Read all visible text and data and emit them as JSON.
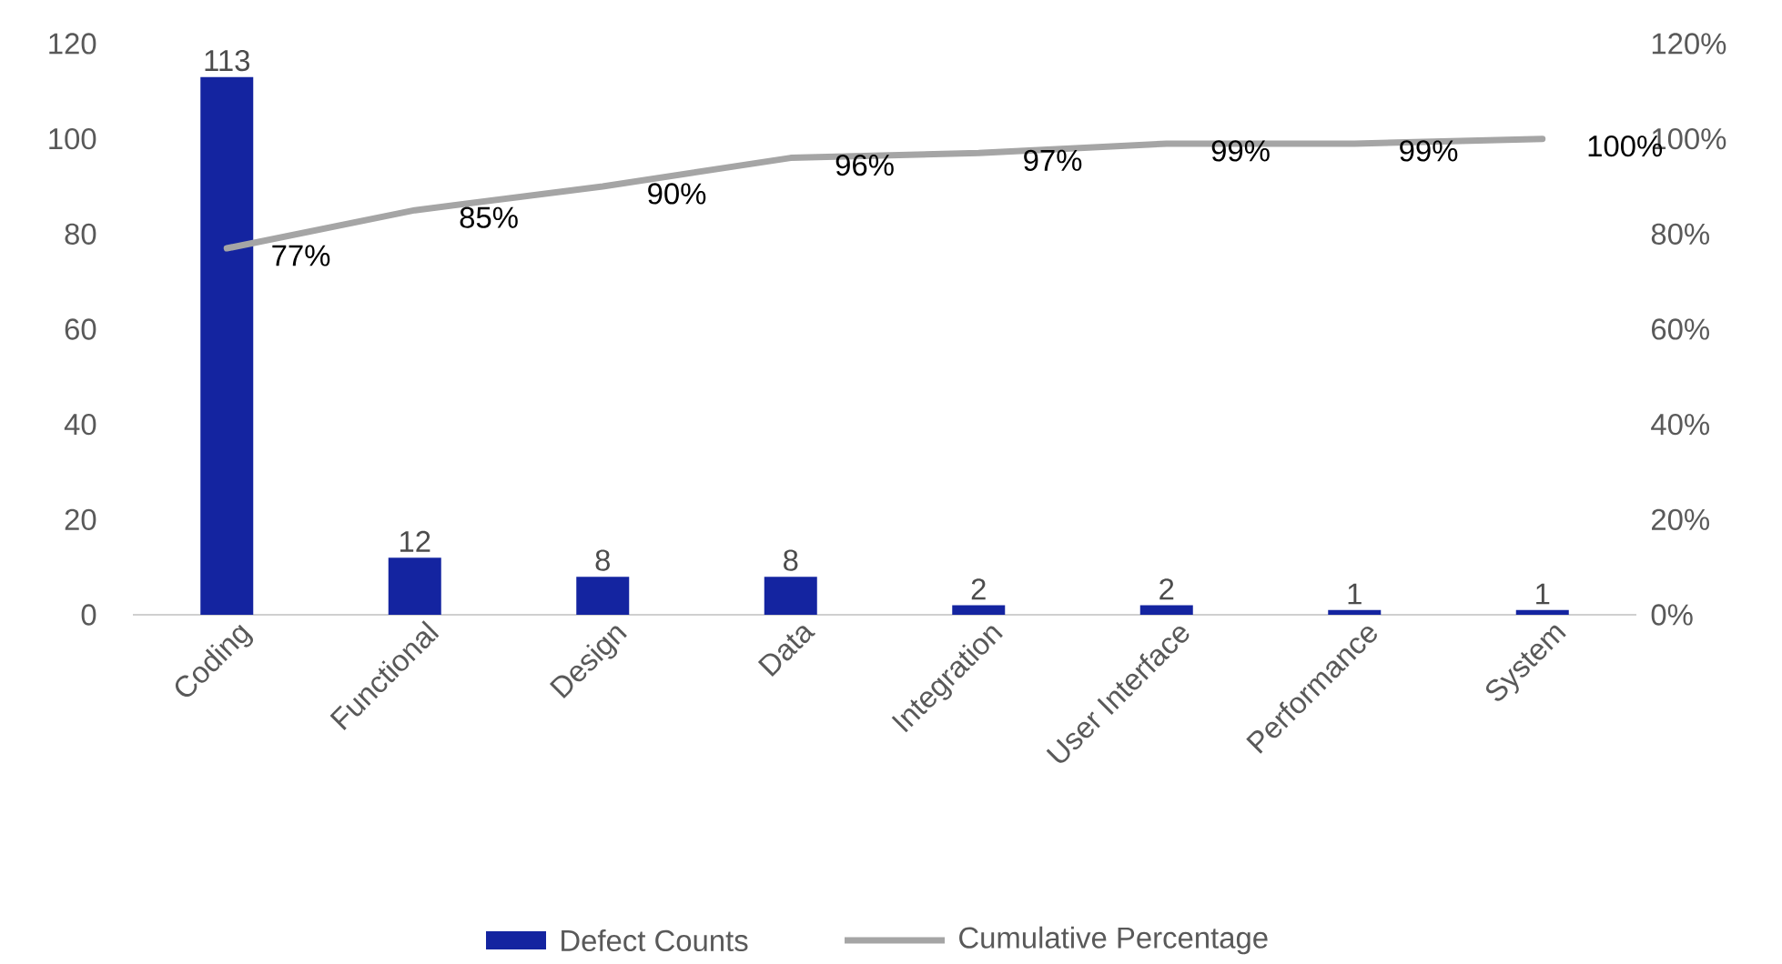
{
  "chart_data": {
    "type": "bar",
    "categories": [
      "Coding",
      "Functional",
      "Design",
      "Data",
      "Integration",
      "User Interface",
      "Performance",
      "System"
    ],
    "series": [
      {
        "name": "Defect Counts",
        "color": "#1424a0",
        "values": [
          113,
          12,
          8,
          8,
          2,
          2,
          1,
          1
        ],
        "value_labels": [
          "113",
          "12",
          "8",
          "8",
          "2",
          "2",
          "1",
          "1"
        ]
      },
      {
        "name": "Cumulative Percentage",
        "type": "line",
        "axis": "y2",
        "color": "#a5a5a5",
        "values": [
          77,
          85,
          90,
          96,
          97,
          99,
          99,
          100
        ],
        "value_labels": [
          "77%",
          "85%",
          "90%",
          "96%",
          "97%",
          "99%",
          "99%",
          "100%"
        ]
      }
    ],
    "ylim": [
      0,
      120
    ],
    "yticks": [
      0,
      20,
      40,
      60,
      80,
      100,
      120
    ],
    "y2lim": [
      0,
      120
    ],
    "y2ticks": [
      {
        "value": 0,
        "label": "0%"
      },
      {
        "value": 20,
        "label": "20%"
      },
      {
        "value": 40,
        "label": "40%"
      },
      {
        "value": 60,
        "label": "60%"
      },
      {
        "value": 80,
        "label": "80%"
      },
      {
        "value": 100,
        "label": "100%"
      },
      {
        "value": 120,
        "label": "120%"
      }
    ],
    "grid": false,
    "legend": "bottom",
    "marker": "none",
    "line_style": "solid"
  }
}
